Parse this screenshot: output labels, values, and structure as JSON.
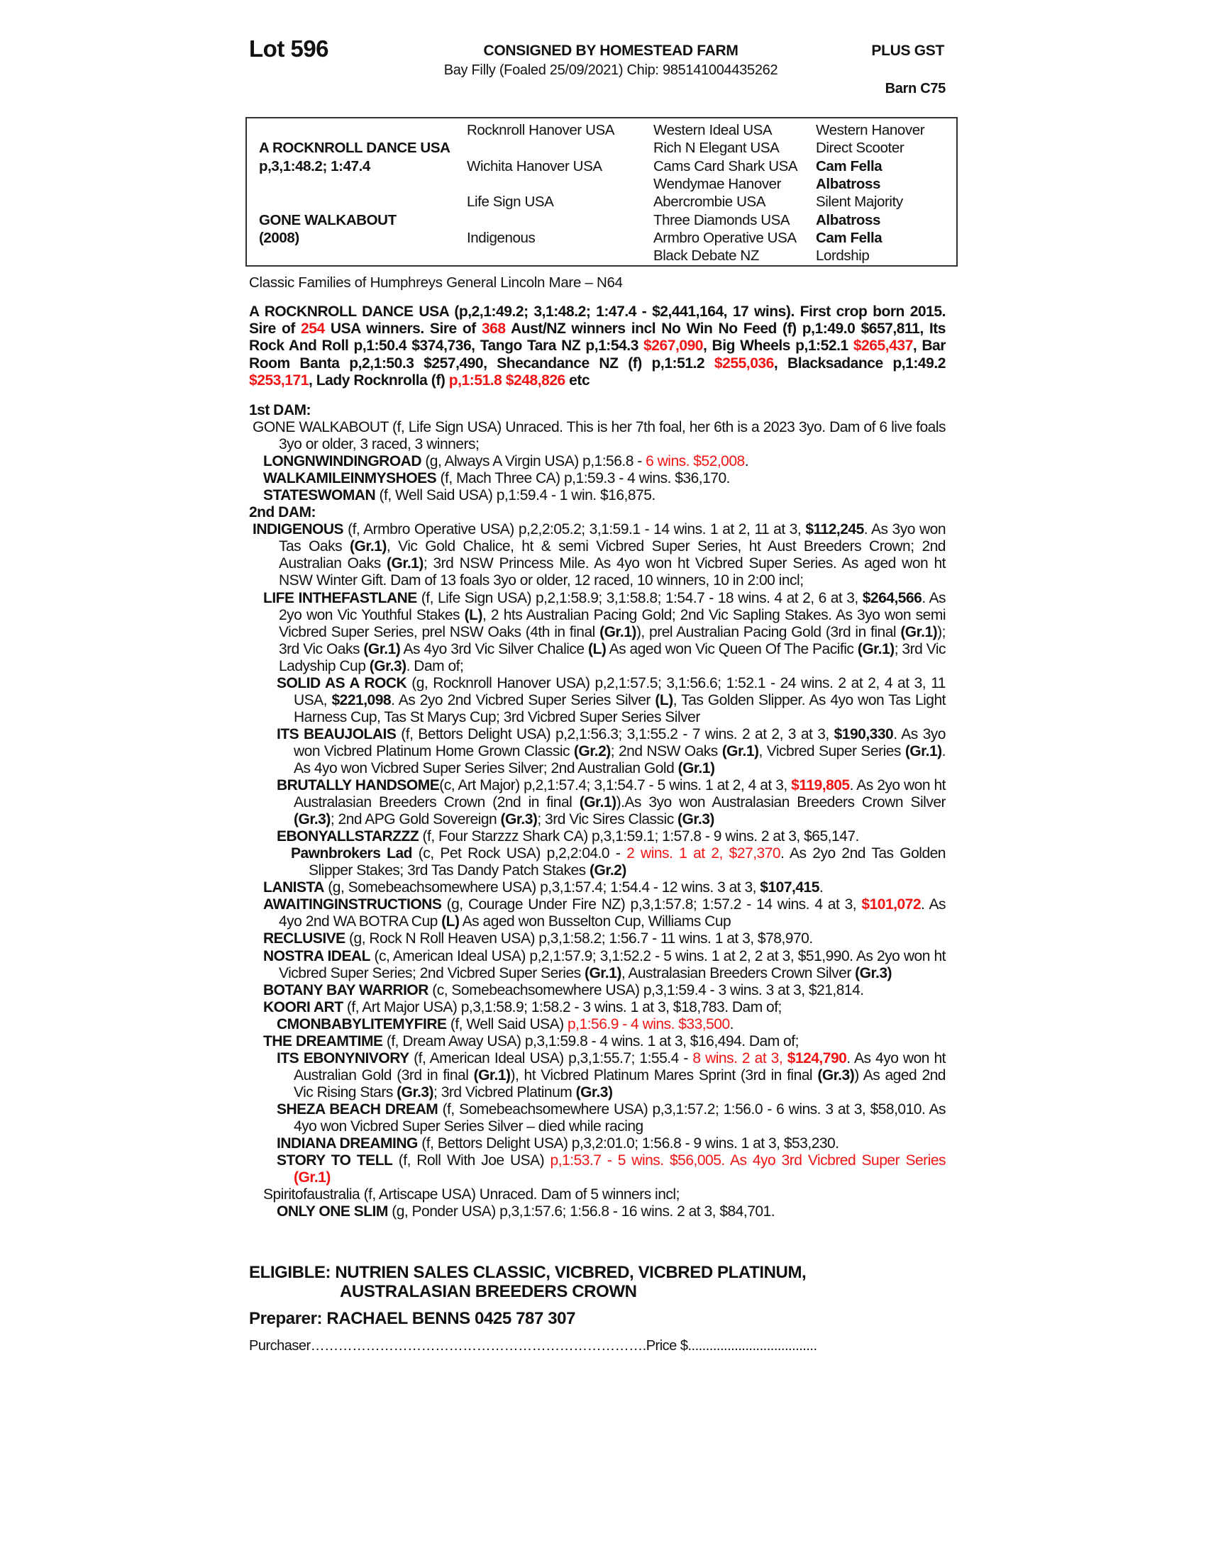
{
  "header": {
    "lot": "Lot 596",
    "consigned": "CONSIGNED BY HOMESTEAD FARM",
    "gst": "PLUS GST",
    "description": "Bay Filly (Foaled 25/09/2021) Chip: 985141004435262",
    "barn": "Barn C75"
  },
  "pedigree": {
    "rows": [
      [
        {
          "t": ""
        },
        {
          "t": "Rocknroll Hanover USA"
        },
        {
          "t": "Western Ideal USA"
        },
        {
          "t": "Western Hanover"
        }
      ],
      [
        {
          "t": "A ROCKNROLL DANCE USA"
        },
        {
          "t": ""
        },
        {
          "t": "Rich N Elegant USA"
        },
        {
          "t": "Direct Scooter"
        }
      ],
      [
        {
          "t": "p,3,1:48.2; 1:47.4"
        },
        {
          "t": "Wichita Hanover USA"
        },
        {
          "t": "Cams Card Shark USA"
        },
        {
          "t": "Cam Fella",
          "b": true
        }
      ],
      [
        {
          "t": ""
        },
        {
          "t": ""
        },
        {
          "t": "Wendymae Hanover"
        },
        {
          "t": "Albatross",
          "b": true
        }
      ],
      [
        {
          "t": ""
        },
        {
          "t": "Life Sign USA"
        },
        {
          "t": "Abercrombie USA"
        },
        {
          "t": "Silent Majority"
        }
      ],
      [
        {
          "t": "GONE WALKABOUT"
        },
        {
          "t": ""
        },
        {
          "t": "Three Diamonds USA"
        },
        {
          "t": "Albatross",
          "b": true
        }
      ],
      [
        {
          "t": "(2008)"
        },
        {
          "t": "Indigenous"
        },
        {
          "t": "Armbro Operative USA"
        },
        {
          "t": "Cam Fella",
          "b": true
        }
      ],
      [
        {
          "t": ""
        },
        {
          "t": ""
        },
        {
          "t": "Black Debate NZ"
        },
        {
          "t": "Lordship"
        }
      ]
    ]
  },
  "family": "Classic Families of Humphreys General Lincoln Mare – N64",
  "sire": [
    {
      "t": "A ROCKNROLL DANCE USA  (p,2,1:49.2; 3,1:48.2; 1:47.4 - $2,441,164, 17 wins). First crop born 2015. Sire of ",
      "s": ""
    },
    {
      "t": "254",
      "s": "r"
    },
    {
      "t": " USA winners. Sire of ",
      "s": ""
    },
    {
      "t": "368",
      "s": "r"
    },
    {
      "t": " Aust/NZ winners incl No Win No Feed (f) p,1:49.0 $657,811, Its Rock And Roll p,1:50.4 $374,736, Tango Tara NZ p,1:54.3 ",
      "s": ""
    },
    {
      "t": "$267,090",
      "s": "r"
    },
    {
      "t": ", Big Wheels p,1:52.1 ",
      "s": ""
    },
    {
      "t": "$265,437",
      "s": "r"
    },
    {
      "t": ", Bar Room Banta p,2,1:50.3 $257,490, Shecandance NZ (f) p,1:51.2 ",
      "s": ""
    },
    {
      "t": "$255,036",
      "s": "r"
    },
    {
      "t": ", Blacksadance p,1:49.2 ",
      "s": ""
    },
    {
      "t": "$253,171",
      "s": "r"
    },
    {
      "t": ", Lady Rocknrolla (f) ",
      "s": ""
    },
    {
      "t": "p,1:51.8 $248,826",
      "s": "r"
    },
    {
      "t": " etc",
      "s": ""
    }
  ],
  "entries": [
    {
      "lvl": "hd",
      "seg": [
        {
          "t": "1st DAM:",
          "s": "b"
        }
      ]
    },
    {
      "lvl": "l0",
      "seg": [
        {
          "t": "GONE WALKABOUT (f, Life Sign USA) Unraced. This is her 7th foal, her 6th is a 2023 3yo. Dam of 6 live foals 3yo or older, 3 raced, 3 winners;",
          "s": ""
        }
      ]
    },
    {
      "lvl": "l1",
      "seg": [
        {
          "t": "LONGNWINDINGROAD",
          "s": "b"
        },
        {
          "t": " (g, Always A Virgin USA) p,1:56.8 - ",
          "s": ""
        },
        {
          "t": "6 wins. $52,008",
          "s": "r"
        },
        {
          "t": ".",
          "s": ""
        }
      ]
    },
    {
      "lvl": "l1",
      "seg": [
        {
          "t": "WALKAMILEINMYSHOES",
          "s": "b"
        },
        {
          "t": " (f, Mach Three CA) p,1:59.3 - 4 wins. $36,170.",
          "s": ""
        }
      ]
    },
    {
      "lvl": "l1",
      "seg": [
        {
          "t": "STATESWOMAN",
          "s": "b"
        },
        {
          "t": " (f, Well Said USA) p,1:59.4 - 1 win. $16,875.",
          "s": ""
        }
      ]
    },
    {
      "lvl": "hd",
      "seg": [
        {
          "t": "2nd DAM:",
          "s": "b"
        }
      ]
    },
    {
      "lvl": "l0",
      "seg": [
        {
          "t": "INDIGENOUS",
          "s": "b"
        },
        {
          "t": " (f, Armbro Operative USA) p,2,2:05.2; 3,1:59.1 - 14 wins. 1 at 2, 11 at 3, ",
          "s": ""
        },
        {
          "t": "$112,245",
          "s": "b"
        },
        {
          "t": ". As 3yo won Tas Oaks ",
          "s": ""
        },
        {
          "t": "(Gr.1)",
          "s": "b"
        },
        {
          "t": ", Vic Gold Chalice, ht & semi Vicbred Super Series, ht Aust Breeders Crown; 2nd Australian Oaks ",
          "s": ""
        },
        {
          "t": "(Gr.1)",
          "s": "b"
        },
        {
          "t": "; 3rd NSW Princess Mile. As 4yo won ht Vicbred Super Series. As aged won ht NSW Winter Gift. Dam of 13 foals 3yo or older, 12 raced, 10 winners, 10 in 2:00 incl;",
          "s": ""
        }
      ]
    },
    {
      "lvl": "l1",
      "seg": [
        {
          "t": "LIFE INTHEFASTLANE",
          "s": "b"
        },
        {
          "t": " (f, Life Sign USA) p,2,1:58.9; 3,1:58.8; 1:54.7 - 18 wins. 4 at 2, 6 at 3, ",
          "s": ""
        },
        {
          "t": "$264,566",
          "s": "b"
        },
        {
          "t": ". As 2yo won Vic Youthful Stakes ",
          "s": ""
        },
        {
          "t": "(L)",
          "s": "b"
        },
        {
          "t": ", 2 hts Australian Pacing Gold; 2nd Vic Sapling Stakes. As 3yo won semi Vicbred Super Series, prel NSW Oaks (4th in final ",
          "s": ""
        },
        {
          "t": "(Gr.1)",
          "s": "b"
        },
        {
          "t": "), prel Australian Pacing Gold (3rd in final ",
          "s": ""
        },
        {
          "t": "(Gr.1)",
          "s": "b"
        },
        {
          "t": "); 3rd Vic Oaks ",
          "s": ""
        },
        {
          "t": "(Gr.1)",
          "s": "b"
        },
        {
          "t": " As 4yo 3rd Vic Silver Chalice ",
          "s": ""
        },
        {
          "t": "(L)",
          "s": "b"
        },
        {
          "t": " As aged won Vic Queen Of The Pacific ",
          "s": ""
        },
        {
          "t": "(Gr.1)",
          "s": "b"
        },
        {
          "t": "; 3rd Vic Ladyship Cup ",
          "s": ""
        },
        {
          "t": "(Gr.3)",
          "s": "b"
        },
        {
          "t": ". Dam of;",
          "s": ""
        }
      ]
    },
    {
      "lvl": "l2",
      "seg": [
        {
          "t": "SOLID AS A ROCK",
          "s": "b"
        },
        {
          "t": " (g, Rocknroll Hanover USA) p,2,1:57.5; 3,1:56.6; 1:52.1 - 24 wins. 2 at 2, 4 at 3, 11 USA, ",
          "s": ""
        },
        {
          "t": "$221,098",
          "s": "b"
        },
        {
          "t": ". As 2yo 2nd Vicbred Super Series Silver ",
          "s": ""
        },
        {
          "t": "(L)",
          "s": "b"
        },
        {
          "t": ", Tas Golden Slipper. As 4yo won Tas Light Harness Cup, Tas St Marys Cup; 3rd Vicbred Super Series Silver",
          "s": ""
        }
      ]
    },
    {
      "lvl": "l2",
      "seg": [
        {
          "t": "ITS BEAUJOLAIS",
          "s": "b"
        },
        {
          "t": " (f, Bettors Delight USA) p,2,1:56.3; 3,1:55.2 - 7 wins. 2 at 2, 3 at 3, ",
          "s": ""
        },
        {
          "t": "$190,330",
          "s": "b"
        },
        {
          "t": ". As 3yo won Vicbred Platinum Home Grown Classic ",
          "s": ""
        },
        {
          "t": "(Gr.2)",
          "s": "b"
        },
        {
          "t": "; 2nd NSW Oaks ",
          "s": ""
        },
        {
          "t": "(Gr.1)",
          "s": "b"
        },
        {
          "t": ", Vicbred Super Series ",
          "s": ""
        },
        {
          "t": "(Gr.1)",
          "s": "b"
        },
        {
          "t": ". As 4yo won Vicbred Super Series Silver; 2nd Australian Gold ",
          "s": ""
        },
        {
          "t": "(Gr.1)",
          "s": "b"
        }
      ]
    },
    {
      "lvl": "l2",
      "seg": [
        {
          "t": "BRUTALLY HANDSOME",
          "s": "b"
        },
        {
          "t": "(c, Art Major) p,2,1:57.4; 3,1:54.7 - 5 wins. 1 at 2, 4 at 3, ",
          "s": ""
        },
        {
          "t": "$119,805",
          "s": "rb"
        },
        {
          "t": ". As 2yo won ht Australasian Breeders Crown (2nd in final ",
          "s": ""
        },
        {
          "t": "(Gr.1)",
          "s": "b"
        },
        {
          "t": ").As 3yo won Australasian Breeders Crown Silver ",
          "s": ""
        },
        {
          "t": "(Gr.3)",
          "s": "b"
        },
        {
          "t": "; 2nd APG Gold Sovereign ",
          "s": ""
        },
        {
          "t": "(Gr.3)",
          "s": "b"
        },
        {
          "t": "; 3rd Vic Sires Classic ",
          "s": ""
        },
        {
          "t": "(Gr.3)",
          "s": "b"
        }
      ]
    },
    {
      "lvl": "l2",
      "seg": [
        {
          "t": "EBONYALLSTARZZZ",
          "s": "b"
        },
        {
          "t": " (f, Four Starzzz Shark CA) p,3,1:59.1; 1:57.8 - 9 wins. 2 at 3, $65,147.",
          "s": ""
        }
      ]
    },
    {
      "lvl": "l3",
      "seg": [
        {
          "t": "Pawnbrokers Lad",
          "s": "b"
        },
        {
          "t": " (c, Pet Rock USA) p,2,2:04.0 - ",
          "s": ""
        },
        {
          "t": "2 wins. 1 at 2, $27,370",
          "s": "r"
        },
        {
          "t": ". As 2yo 2nd Tas Golden Slipper Stakes; 3rd Tas Dandy Patch Stakes ",
          "s": ""
        },
        {
          "t": "(Gr.2)",
          "s": "b"
        }
      ]
    },
    {
      "lvl": "l1",
      "seg": [
        {
          "t": "LANISTA",
          "s": "b"
        },
        {
          "t": " (g, Somebeachsomewhere USA) p,3,1:57.4; 1:54.4 - 12 wins. 3 at 3, ",
          "s": ""
        },
        {
          "t": "$107,415",
          "s": "b"
        },
        {
          "t": ".",
          "s": ""
        }
      ]
    },
    {
      "lvl": "l1",
      "seg": [
        {
          "t": "AWAITINGINSTRUCTIONS",
          "s": "b"
        },
        {
          "t": " (g, Courage Under Fire NZ) p,3,1:57.8; 1:57.2 - 14 wins. 4 at 3, ",
          "s": ""
        },
        {
          "t": "$101,072",
          "s": "rb"
        },
        {
          "t": ". As 4yo 2nd WA BOTRA Cup ",
          "s": ""
        },
        {
          "t": "(L)",
          "s": "b"
        },
        {
          "t": " As aged won Busselton Cup, Williams Cup",
          "s": ""
        }
      ]
    },
    {
      "lvl": "l1",
      "seg": [
        {
          "t": "RECLUSIVE",
          "s": "b"
        },
        {
          "t": " (g, Rock N Roll Heaven USA) p,3,1:58.2; 1:56.7 - 11 wins. 1 at 3, $78,970.",
          "s": ""
        }
      ]
    },
    {
      "lvl": "l1",
      "seg": [
        {
          "t": "NOSTRA IDEAL",
          "s": "b"
        },
        {
          "t": " (c, American Ideal USA) p,2,1:57.9; 3,1:52.2 - 5 wins. 1 at 2, 2 at 3, $51,990. As 2yo won ht Vicbred Super Series; 2nd Vicbred Super Series ",
          "s": ""
        },
        {
          "t": "(Gr.1)",
          "s": "b"
        },
        {
          "t": ", Australasian Breeders Crown Silver ",
          "s": ""
        },
        {
          "t": "(Gr.3)",
          "s": "b"
        }
      ]
    },
    {
      "lvl": "l1",
      "seg": [
        {
          "t": "BOTANY BAY WARRIOR",
          "s": "b"
        },
        {
          "t": " (c, Somebeachsomewhere USA) p,3,1:59.4 - 3 wins. 3 at 3, $21,814.",
          "s": ""
        }
      ]
    },
    {
      "lvl": "l1",
      "seg": [
        {
          "t": "KOORI ART",
          "s": "b"
        },
        {
          "t": " (f, Art Major USA) p,3,1:58.9; 1:58.2 - 3 wins. 1 at 3, $18,783. Dam of;",
          "s": ""
        }
      ]
    },
    {
      "lvl": "l2",
      "seg": [
        {
          "t": "CMONBABYLITEMYFIRE",
          "s": "b"
        },
        {
          "t": " (f, Well Said USA) ",
          "s": ""
        },
        {
          "t": "p,1:56.9 - 4 wins. $33,500",
          "s": "r"
        },
        {
          "t": ".",
          "s": ""
        }
      ]
    },
    {
      "lvl": "l1",
      "seg": [
        {
          "t": "THE DREAMTIME",
          "s": "b"
        },
        {
          "t": " (f, Dream Away USA) p,3,1:59.8 - 4 wins. 1 at 3, $16,494. Dam of;",
          "s": ""
        }
      ]
    },
    {
      "lvl": "l2",
      "seg": [
        {
          "t": "ITS EBONYNIVORY",
          "s": "b"
        },
        {
          "t": " (f, American Ideal USA) p,3,1:55.7; 1:55.4 - ",
          "s": ""
        },
        {
          "t": "8 wins. 2 at 3, ",
          "s": "r"
        },
        {
          "t": "$124,790",
          "s": "rb"
        },
        {
          "t": ". As 4yo won ht Australian Gold (3rd in final ",
          "s": ""
        },
        {
          "t": "(Gr.1)",
          "s": "b"
        },
        {
          "t": "), ht Vicbred Platinum Mares Sprint (3rd in final ",
          "s": ""
        },
        {
          "t": "(Gr.3)",
          "s": "b"
        },
        {
          "t": ") As aged 2nd Vic Rising Stars ",
          "s": ""
        },
        {
          "t": "(Gr.3)",
          "s": "b"
        },
        {
          "t": "; 3rd Vicbred Platinum ",
          "s": ""
        },
        {
          "t": "(Gr.3)",
          "s": "b"
        }
      ]
    },
    {
      "lvl": "l2",
      "seg": [
        {
          "t": "SHEZA BEACH DREAM",
          "s": "b"
        },
        {
          "t": " (f, Somebeachsomewhere USA) p,3,1:57.2; 1:56.0 - 6 wins. 3 at 3, $58,010. As 4yo won Vicbred Super Series Silver – died while racing",
          "s": ""
        }
      ]
    },
    {
      "lvl": "l2",
      "seg": [
        {
          "t": "INDIANA DREAMING",
          "s": "b"
        },
        {
          "t": " (f, Bettors Delight USA) p,3,2:01.0; 1:56.8 - 9 wins. 1 at 3, $53,230.",
          "s": ""
        }
      ]
    },
    {
      "lvl": "l2",
      "seg": [
        {
          "t": "STORY TO TELL",
          "s": "b"
        },
        {
          "t": " (f, Roll With Joe USA) ",
          "s": ""
        },
        {
          "t": "p,1:53.7 - 5 wins. $56,005. As 4yo 3rd Vicbred Super Series ",
          "s": "r"
        },
        {
          "t": "(Gr.1)",
          "s": "rb"
        }
      ]
    },
    {
      "lvl": "l1",
      "seg": [
        {
          "t": "Spiritofaustralia (f, Artiscape USA) Unraced. Dam of 5 winners incl;",
          "s": ""
        }
      ]
    },
    {
      "lvl": "l2",
      "seg": [
        {
          "t": "ONLY ONE SLIM",
          "s": "b"
        },
        {
          "t": " (g, Ponder USA) p,3,1:57.6; 1:56.8 - 16 wins. 2 at 3, $84,701.",
          "s": ""
        }
      ]
    }
  ],
  "eligible": {
    "line1": "ELIGIBLE: NUTRIEN SALES CLASSIC, VICBRED, VICBRED PLATINUM,",
    "line2": "AUSTRALASIAN BREEDERS CROWN"
  },
  "preparer": "Preparer: RACHAEL BENNS 0425 787 307",
  "purchaser": "Purchaser……………………………………………………………….Price $....................................",
  "colors": {
    "red": "#f01414",
    "text": "#111111"
  }
}
